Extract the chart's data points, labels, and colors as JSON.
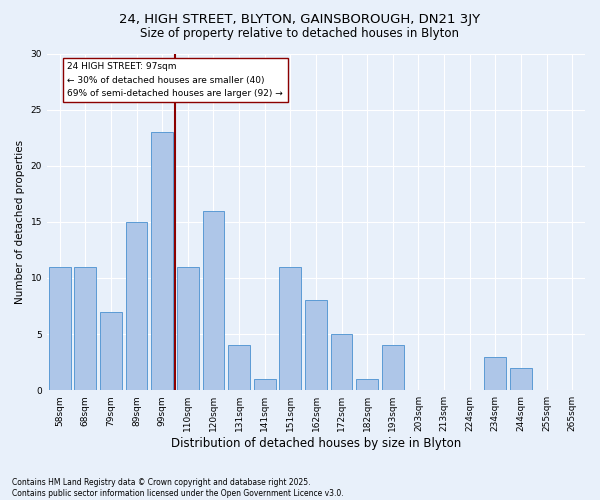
{
  "title_line1": "24, HIGH STREET, BLYTON, GAINSBOROUGH, DN21 3JY",
  "title_line2": "Size of property relative to detached houses in Blyton",
  "xlabel": "Distribution of detached houses by size in Blyton",
  "ylabel": "Number of detached properties",
  "categories": [
    "58sqm",
    "68sqm",
    "79sqm",
    "89sqm",
    "99sqm",
    "110sqm",
    "120sqm",
    "131sqm",
    "141sqm",
    "151sqm",
    "162sqm",
    "172sqm",
    "182sqm",
    "193sqm",
    "203sqm",
    "213sqm",
    "224sqm",
    "234sqm",
    "244sqm",
    "255sqm",
    "265sqm"
  ],
  "values": [
    11,
    11,
    7,
    15,
    23,
    11,
    16,
    4,
    1,
    11,
    8,
    5,
    1,
    4,
    0,
    0,
    0,
    3,
    2,
    0,
    0
  ],
  "bar_color": "#aec6e8",
  "bar_edge_color": "#5b9bd5",
  "vline_index": 4.5,
  "vline_color": "#8b0000",
  "annotation_text": "24 HIGH STREET: 97sqm\n← 30% of detached houses are smaller (40)\n69% of semi-detached houses are larger (92) →",
  "annotation_box_color": "white",
  "annotation_box_edge": "#8b0000",
  "ylim": [
    0,
    30
  ],
  "yticks": [
    0,
    5,
    10,
    15,
    20,
    25,
    30
  ],
  "background_color": "#e8f0fa",
  "grid_color": "#ffffff",
  "footer_text": "Contains HM Land Registry data © Crown copyright and database right 2025.\nContains public sector information licensed under the Open Government Licence v3.0.",
  "title_fontsize": 9.5,
  "subtitle_fontsize": 8.5,
  "xlabel_fontsize": 8.5,
  "ylabel_fontsize": 7.5,
  "tick_fontsize": 6.5,
  "annotation_fontsize": 6.5,
  "footer_fontsize": 5.5
}
